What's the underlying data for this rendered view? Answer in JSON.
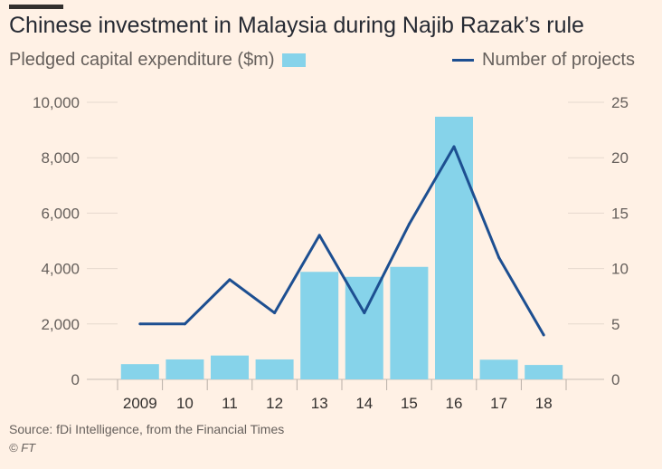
{
  "title": "Chinese investment in Malaysia during Najib Razak’s rule",
  "source": "Source: fDi Intelligence, from the Financial Times",
  "credit": "© FT",
  "colors": {
    "bar": "#86d3ea",
    "line": "#1d4f91",
    "grid": "#e6d9ce"
  },
  "chart_data": {
    "type": "bar",
    "categories": [
      "2009",
      "10",
      "11",
      "12",
      "13",
      "14",
      "15",
      "16",
      "17",
      "18"
    ],
    "series": [
      {
        "name": "Pledged capital expenditure ($m)",
        "type": "bar",
        "axis": "left",
        "values": [
          550,
          720,
          860,
          720,
          3880,
          3700,
          4060,
          9480,
          710,
          520
        ]
      },
      {
        "name": "Number of projects",
        "type": "line",
        "axis": "right",
        "values": [
          5,
          5,
          9,
          6,
          13,
          6,
          14,
          21,
          11,
          4
        ]
      }
    ],
    "y_left": {
      "ylim": [
        0,
        10000
      ],
      "ticks": [
        "0",
        "2,000",
        "4,000",
        "6,000",
        "8,000",
        "10,000"
      ]
    },
    "y_right": {
      "ylim": [
        0,
        25
      ],
      "ticks": [
        "0",
        "5",
        "10",
        "15",
        "20",
        "25"
      ]
    },
    "grid": true,
    "legend": "top"
  }
}
